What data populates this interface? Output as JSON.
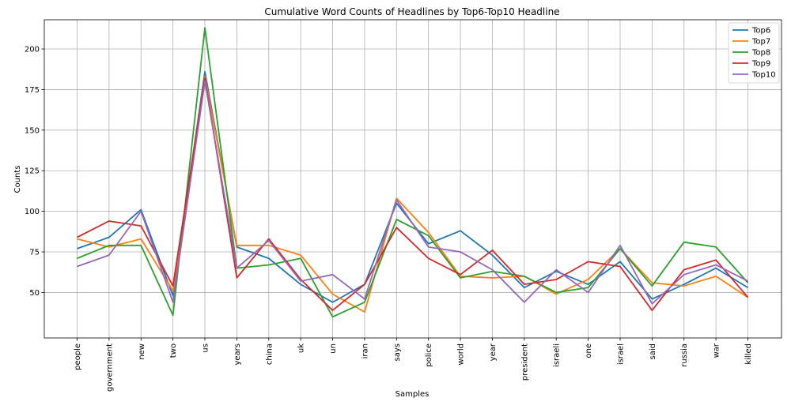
{
  "chart_data": {
    "type": "line",
    "title": "Cumulative Word Counts of Headlines by Top6-Top10 Headline",
    "xlabel": "Samples",
    "ylabel": "Counts",
    "ylim": [
      22,
      218
    ],
    "yticks": [
      50,
      75,
      100,
      125,
      150,
      175,
      200
    ],
    "grid": true,
    "legend_position": "top-right",
    "categories": [
      "people",
      "government",
      "new",
      "two",
      "us",
      "years",
      "china",
      "uk",
      "un",
      "iran",
      "says",
      "police",
      "world",
      "year",
      "president",
      "israeli",
      "one",
      "israel",
      "said",
      "russia",
      "war",
      "killed"
    ],
    "series": [
      {
        "name": "Top6",
        "color": "#1f77b4",
        "values": [
          77,
          84,
          101,
          48,
          186,
          78,
          71,
          55,
          44,
          55,
          105,
          80,
          88,
          73,
          53,
          63,
          55,
          69,
          46,
          55,
          65,
          53
        ]
      },
      {
        "name": "Top7",
        "color": "#ff7f0e",
        "values": [
          83,
          78,
          83,
          51,
          183,
          79,
          79,
          73,
          49,
          38,
          108,
          87,
          60,
          59,
          60,
          49,
          58,
          77,
          56,
          54,
          60,
          47
        ]
      },
      {
        "name": "Top8",
        "color": "#2ca02c",
        "values": [
          71,
          79,
          79,
          36,
          213,
          65,
          67,
          71,
          35,
          44,
          95,
          85,
          59,
          63,
          60,
          50,
          53,
          77,
          54,
          81,
          78,
          56
        ]
      },
      {
        "name": "Top9",
        "color": "#d62728",
        "values": [
          84,
          94,
          91,
          54,
          182,
          59,
          83,
          58,
          39,
          55,
          90,
          71,
          61,
          76,
          55,
          58,
          69,
          66,
          39,
          64,
          70,
          47
        ]
      },
      {
        "name": "Top10",
        "color": "#9467bd",
        "values": [
          66,
          73,
          100,
          44,
          180,
          65,
          82,
          57,
          61,
          46,
          107,
          78,
          75,
          64,
          44,
          64,
          50,
          79,
          43,
          61,
          67,
          57
        ]
      }
    ]
  }
}
